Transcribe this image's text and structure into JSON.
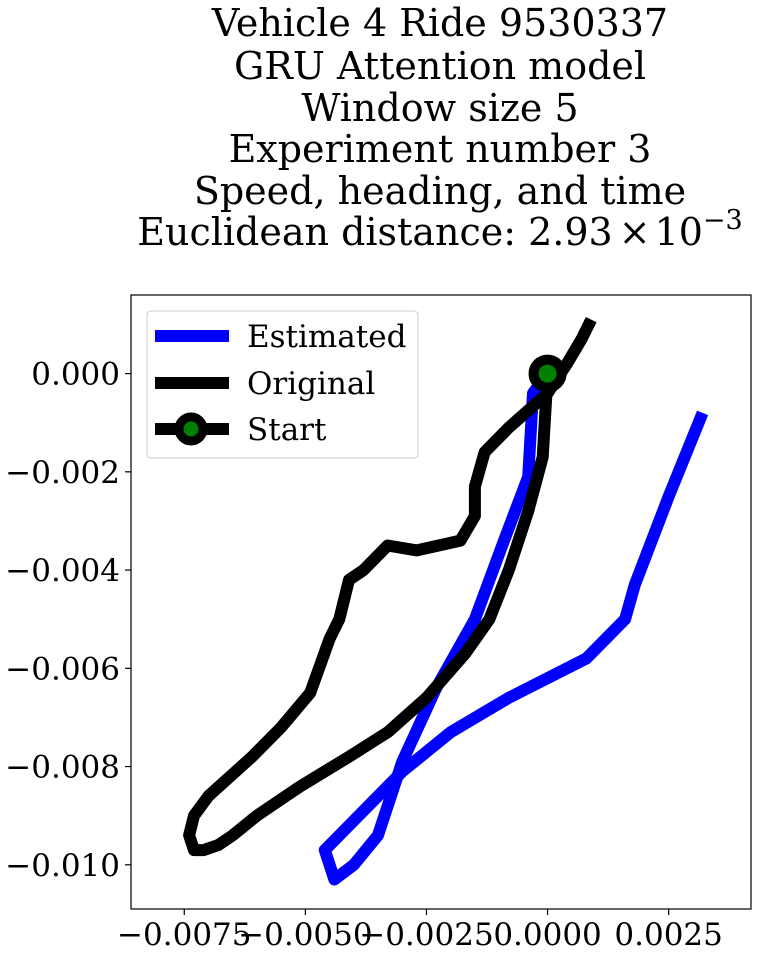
{
  "chart_data": {
    "type": "line",
    "title_lines": [
      "Vehicle 4 Ride 9530337",
      "GRU Attention model",
      "Window size 5",
      "Experiment number 3",
      "Speed, heading, and time"
    ],
    "title_metric_prefix": "Euclidean distance: 2.93",
    "title_metric_times": "×",
    "title_metric_base": "10",
    "title_metric_exponent": "−3",
    "xlim": [
      -0.0086,
      0.0042
    ],
    "ylim": [
      -0.0109,
      0.0016
    ],
    "x_ticks": [
      -0.0075,
      -0.005,
      -0.0025,
      0.0,
      0.0025
    ],
    "x_tick_labels": [
      "−0.0075",
      "−0.0050",
      "−0.0025",
      "0.0000",
      "0.0025"
    ],
    "y_ticks": [
      0.0,
      -0.002,
      -0.004,
      -0.006,
      -0.008,
      -0.01
    ],
    "y_tick_labels": [
      "0.000",
      "−0.002",
      "−0.004",
      "−0.006",
      "−0.008",
      "−0.010"
    ],
    "legend_position": "top-left",
    "series": [
      {
        "name": "Estimated",
        "color": "#0000ff",
        "points": [
          [
            0.0,
            0.0
          ],
          [
            -0.0003,
            -0.0004
          ],
          [
            -0.0004,
            -0.0021
          ],
          [
            -0.0009,
            -0.0034
          ],
          [
            -0.0015,
            -0.005
          ],
          [
            -0.0023,
            -0.0064
          ],
          [
            -0.003,
            -0.0079
          ],
          [
            -0.0035,
            -0.0094
          ],
          [
            -0.004,
            -0.01
          ],
          [
            -0.0044,
            -0.0103
          ],
          [
            -0.0046,
            -0.0097
          ],
          [
            -0.0039,
            -0.009
          ],
          [
            -0.003,
            -0.0081
          ],
          [
            -0.002,
            -0.0073
          ],
          [
            -0.0008,
            -0.0066
          ],
          [
            0.0008,
            -0.0058
          ],
          [
            0.0016,
            -0.005
          ],
          [
            0.0018,
            -0.0043
          ],
          [
            0.0025,
            -0.0025
          ],
          [
            0.0032,
            -0.0008
          ]
        ]
      },
      {
        "name": "Original",
        "color": "#000000",
        "points": [
          [
            0.0009,
            0.0011
          ],
          [
            0.0007,
            0.0007
          ],
          [
            0.0004,
            0.0002
          ],
          [
            0.0,
            -0.0004
          ],
          [
            -0.0008,
            -0.0011
          ],
          [
            -0.0013,
            -0.0016
          ],
          [
            -0.0015,
            -0.0023
          ],
          [
            -0.0015,
            -0.0029
          ],
          [
            -0.0018,
            -0.0034
          ],
          [
            -0.0027,
            -0.0036
          ],
          [
            -0.0033,
            -0.0035
          ],
          [
            -0.0038,
            -0.004
          ],
          [
            -0.0041,
            -0.0042
          ],
          [
            -0.0043,
            -0.005
          ],
          [
            -0.0045,
            -0.0054
          ],
          [
            -0.0049,
            -0.0065
          ],
          [
            -0.0055,
            -0.0072
          ],
          [
            -0.0061,
            -0.0078
          ],
          [
            -0.007,
            -0.0086
          ],
          [
            -0.0073,
            -0.009
          ],
          [
            -0.0074,
            -0.0094
          ],
          [
            -0.0073,
            -0.0097
          ],
          [
            -0.0071,
            -0.0097
          ],
          [
            -0.0068,
            -0.0096
          ],
          [
            -0.0065,
            -0.0094
          ],
          [
            -0.006,
            -0.009
          ],
          [
            -0.0051,
            -0.0084
          ],
          [
            -0.0041,
            -0.0078
          ],
          [
            -0.0033,
            -0.0073
          ],
          [
            -0.0025,
            -0.0066
          ],
          [
            -0.0017,
            -0.0057
          ],
          [
            -0.0012,
            -0.005
          ],
          [
            -0.0008,
            -0.004
          ],
          [
            -0.0004,
            -0.0028
          ],
          [
            -0.0001,
            -0.0017
          ],
          [
            0.0,
            0.0
          ]
        ]
      },
      {
        "name": "Start",
        "color": "#000000",
        "marker_fill": "#008000",
        "points": [
          [
            0.0,
            0.0
          ]
        ]
      }
    ]
  }
}
